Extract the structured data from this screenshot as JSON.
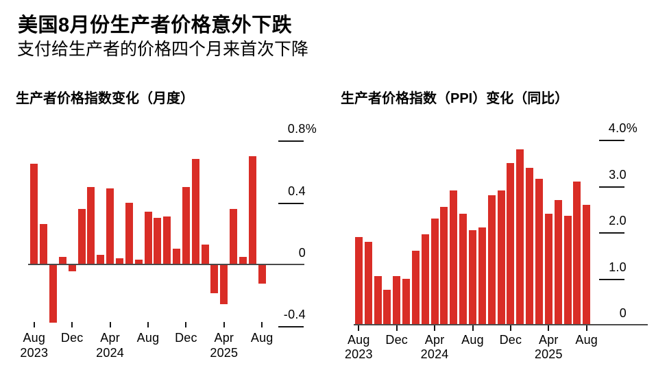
{
  "header": {
    "title": "美国8月份生产者价格意外下跌",
    "subtitle": "支付给生产者的价格四个月来首次下降"
  },
  "colors": {
    "bar": "#d92d26",
    "axis": "#4a4a4a",
    "tick": "#141414",
    "text": "#000000",
    "background": "#ffffff"
  },
  "chart_data": [
    {
      "id": "monthly",
      "type": "bar",
      "title": "生产者价格指数变化（月度）",
      "unit": "%",
      "legend": "none",
      "grid": "off",
      "categories": [
        "Aug 2023",
        "Sep 2023",
        "Oct 2023",
        "Nov 2023",
        "Dec 2023",
        "Jan 2024",
        "Feb 2024",
        "Mar 2024",
        "Apr 2024",
        "May 2024",
        "Jun 2024",
        "Jul 2024",
        "Aug 2024",
        "Sep 2024",
        "Oct 2024",
        "Nov 2024",
        "Dec 2024",
        "Jan 2025",
        "Feb 2025",
        "Mar 2025",
        "Apr 2025",
        "May 2025",
        "Jun 2025",
        "Jul 2025",
        "Aug 2025"
      ],
      "values": [
        0.65,
        0.26,
        -0.37,
        0.05,
        -0.04,
        0.36,
        0.5,
        0.06,
        0.49,
        0.04,
        0.4,
        0.03,
        0.34,
        0.3,
        0.31,
        0.1,
        0.5,
        0.68,
        0.13,
        -0.18,
        -0.25,
        0.36,
        0.05,
        0.7,
        -0.12
      ],
      "ylim": [
        -0.4,
        0.8
      ],
      "yticks": [
        {
          "label": "0.8%",
          "value": 0.8
        },
        {
          "label": "0.4",
          "value": 0.4
        },
        {
          "label": "0",
          "value": 0
        },
        {
          "label": "-0.4",
          "value": -0.4
        }
      ],
      "xticks": [
        {
          "index": 0,
          "month": "Aug",
          "year": "2023"
        },
        {
          "index": 4,
          "month": "Dec"
        },
        {
          "index": 8,
          "month": "Apr",
          "year": "2024"
        },
        {
          "index": 12,
          "month": "Aug"
        },
        {
          "index": 16,
          "month": "Dec"
        },
        {
          "index": 20,
          "month": "Apr",
          "year": "2025"
        },
        {
          "index": 24,
          "month": "Aug"
        }
      ]
    },
    {
      "id": "yoy",
      "type": "bar",
      "title": "生产者价格指数（PPI）变化（同比）",
      "unit": "%",
      "legend": "none",
      "grid": "off",
      "categories": [
        "Aug 2023",
        "Sep 2023",
        "Oct 2023",
        "Nov 2023",
        "Dec 2023",
        "Jan 2024",
        "Feb 2024",
        "Mar 2024",
        "Apr 2024",
        "May 2024",
        "Jun 2024",
        "Jul 2024",
        "Aug 2024",
        "Sep 2024",
        "Oct 2024",
        "Nov 2024",
        "Dec 2024",
        "Jan 2025",
        "Feb 2025",
        "Mar 2025",
        "Apr 2025",
        "May 2025",
        "Jun 2025",
        "Jul 2025",
        "Aug 2025"
      ],
      "values": [
        1.9,
        1.8,
        1.05,
        0.75,
        1.05,
        1.0,
        1.6,
        1.95,
        2.3,
        2.55,
        2.9,
        2.4,
        2.05,
        2.1,
        2.8,
        2.9,
        3.5,
        3.8,
        3.4,
        3.15,
        2.4,
        2.7,
        2.35,
        3.1,
        2.6
      ],
      "ylim": [
        0,
        4.0
      ],
      "yticks": [
        {
          "label": "4.0%",
          "value": 4.0
        },
        {
          "label": "3.0",
          "value": 3.0
        },
        {
          "label": "2.0",
          "value": 2.0
        },
        {
          "label": "1.0",
          "value": 1.0
        },
        {
          "label": "0",
          "value": 0
        }
      ],
      "xticks": [
        {
          "index": 0,
          "month": "Aug",
          "year": "2023"
        },
        {
          "index": 4,
          "month": "Dec"
        },
        {
          "index": 8,
          "month": "Apr",
          "year": "2024"
        },
        {
          "index": 12,
          "month": "Aug"
        },
        {
          "index": 16,
          "month": "Dec"
        },
        {
          "index": 20,
          "month": "Apr",
          "year": "2025"
        },
        {
          "index": 24,
          "month": "Aug"
        }
      ]
    }
  ]
}
